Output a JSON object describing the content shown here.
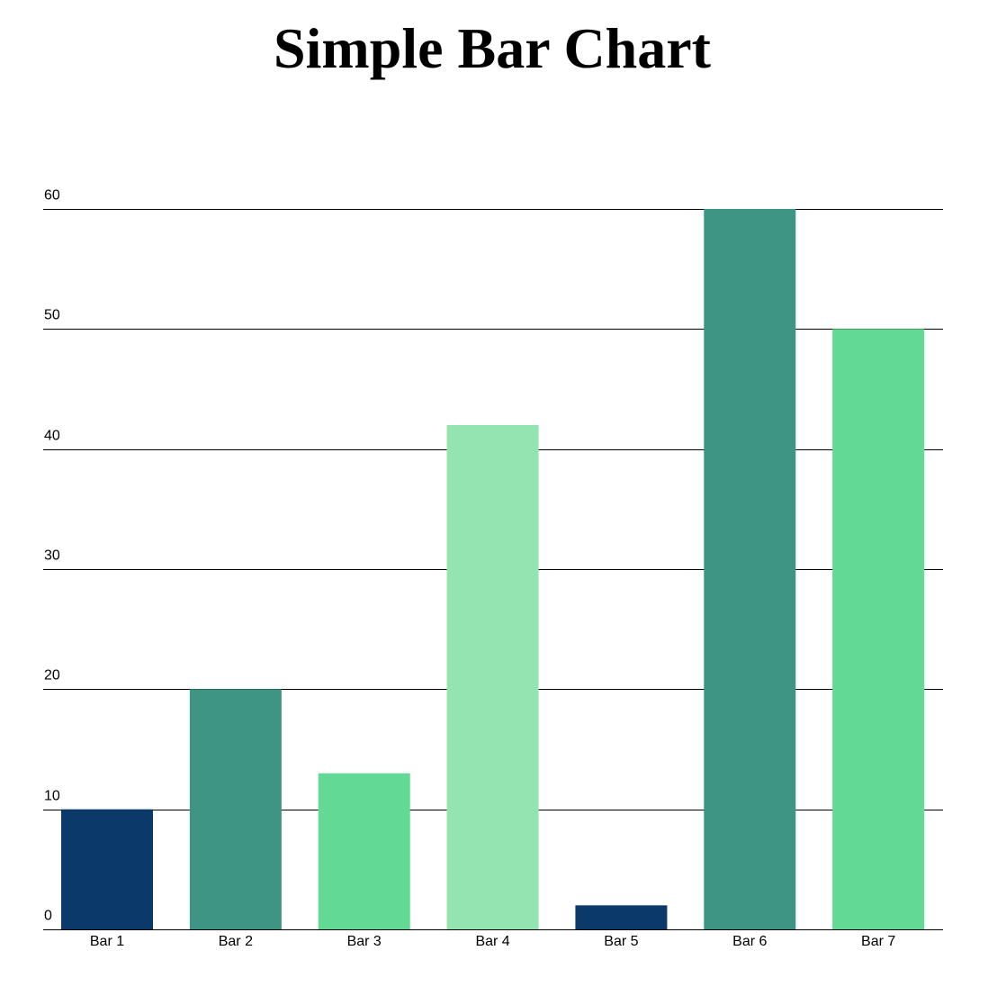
{
  "chart_data": {
    "type": "bar",
    "title": "Simple Bar Chart",
    "xlabel": "",
    "ylabel": "",
    "categories": [
      "Bar 1",
      "Bar 2",
      "Bar 3",
      "Bar 4",
      "Bar 5",
      "Bar 6",
      "Bar 7"
    ],
    "values": [
      10,
      20,
      13,
      42,
      2,
      60,
      50
    ],
    "colors": [
      "#0b3a6a",
      "#3e9584",
      "#62da96",
      "#93e4b0",
      "#0b3a6a",
      "#3e9584",
      "#62da96"
    ],
    "ylim": [
      0,
      60
    ],
    "yticks": [
      0,
      10,
      20,
      30,
      40,
      50,
      60
    ],
    "grid": true,
    "legend": "none"
  }
}
